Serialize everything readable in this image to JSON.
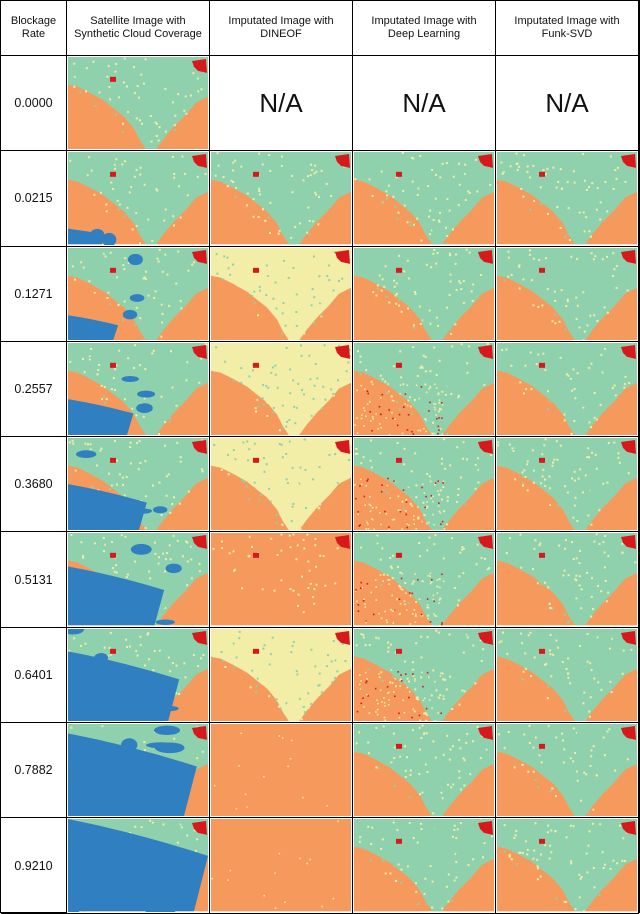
{
  "header": {
    "col_rate": "Blockage Rate",
    "col_satellite": "Satellite Image with Synthetic Cloud Coverage",
    "col_dineof": "Imputated Image with DINEOF",
    "col_deep": "Imputated Image with Deep Learning",
    "col_funk": "Imputated Image with Funk-SVD"
  },
  "na_label": "N/A",
  "rows": [
    {
      "rate": "0.0000",
      "cloud": 0.0,
      "dineof": null,
      "deep": null,
      "funk": null
    },
    {
      "rate": "0.0215",
      "cloud": 0.0215,
      "dineof": "full",
      "deep": "full",
      "funk": "full"
    },
    {
      "rate": "0.1271",
      "cloud": 0.1271,
      "dineof": "pale",
      "deep": "full",
      "funk": "full"
    },
    {
      "rate": "0.2557",
      "cloud": 0.2557,
      "dineof": "pale",
      "deep": "speckle",
      "funk": "full"
    },
    {
      "rate": "0.3680",
      "cloud": 0.368,
      "dineof": "pale",
      "deep": "speckle",
      "funk": "full"
    },
    {
      "rate": "0.5131",
      "cloud": 0.5131,
      "dineof": "faded",
      "deep": "speckle",
      "funk": "full"
    },
    {
      "rate": "0.6401",
      "cloud": 0.6401,
      "dineof": "pale",
      "deep": "speckle",
      "funk": "full"
    },
    {
      "rate": "0.7882",
      "cloud": 0.7882,
      "dineof": "empty",
      "deep": "full",
      "funk": "full"
    },
    {
      "rate": "0.9210",
      "cloud": 0.921,
      "dineof": "empty",
      "deep": "full",
      "funk": "full"
    }
  ],
  "colors": {
    "sea": "#f59a5c",
    "land": "#8fd1ad",
    "pale": "#f2eea8",
    "urban": "#d7191c",
    "cloud": "#2f7fc1"
  }
}
